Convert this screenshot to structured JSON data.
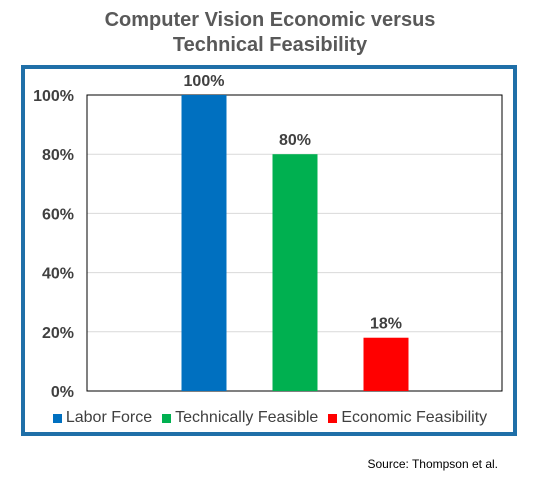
{
  "title_line1": "Computer Vision Economic versus",
  "title_line2": "Technical Feasibility",
  "source": "Source: Thompson  et al.",
  "chart_data": {
    "type": "bar",
    "categories": [
      "Labor Force",
      "Technically Feasible",
      "Economic Feasibility"
    ],
    "values": [
      100,
      80,
      18
    ],
    "data_labels": [
      "100%",
      "80%",
      "18%"
    ],
    "colors": [
      "#0070c0",
      "#00b050",
      "#ff0000"
    ],
    "ylim": [
      0,
      100
    ],
    "yticks": [
      0,
      20,
      40,
      60,
      80,
      100
    ],
    "ytick_labels": [
      "0%",
      "20%",
      "40%",
      "60%",
      "80%",
      "100%"
    ],
    "grid": true,
    "legend_position": "bottom",
    "legend": [
      "Labor Force",
      "Technically Feasible",
      "Economic Feasibility"
    ]
  }
}
